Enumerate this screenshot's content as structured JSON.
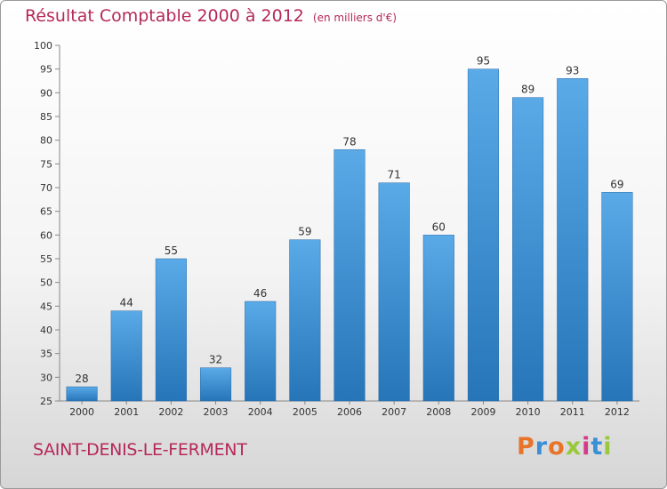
{
  "chart_data": {
    "type": "bar",
    "title": "Résultat Comptable 2000 à 2012",
    "subtitle": "(en milliers d'€)",
    "categories": [
      "2000",
      "2001",
      "2002",
      "2003",
      "2004",
      "2005",
      "2006",
      "2007",
      "2008",
      "2009",
      "2010",
      "2011",
      "2012"
    ],
    "values": [
      28,
      44,
      55,
      32,
      46,
      59,
      78,
      71,
      60,
      95,
      89,
      93,
      69
    ],
    "ylim": [
      25,
      100
    ],
    "yticks": [
      25,
      30,
      35,
      40,
      45,
      50,
      55,
      60,
      65,
      70,
      75,
      80,
      85,
      90,
      95,
      100
    ],
    "grid": false,
    "bar_color": "#3a8fd6"
  },
  "commune": "SAINT-DENIS-LE-FERMENT",
  "logo": {
    "letters": [
      "P",
      "r",
      "o",
      "x",
      "i",
      "t",
      "i"
    ],
    "colors": [
      "#e8742a",
      "#3a8fd6",
      "#e8742a",
      "#9ac83c",
      "#d63a8a",
      "#3a8fd6",
      "#9ac83c"
    ]
  }
}
